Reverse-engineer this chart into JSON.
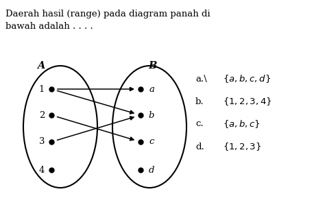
{
  "title_line1": "Daerah hasil (range) pada diagram panah di",
  "title_line2": "bawah adalah . . . .",
  "set_A_label": "A",
  "set_B_label": "B",
  "set_A_elements": [
    "1",
    "2",
    "3",
    "4"
  ],
  "set_B_elements": [
    "a",
    "b",
    "c",
    "d"
  ],
  "arrows": [
    [
      0,
      0
    ],
    [
      0,
      1
    ],
    [
      1,
      2
    ],
    [
      2,
      1
    ]
  ],
  "bg_color": "#ffffff",
  "text_color": "#000000",
  "ellipse_color": "#000000",
  "arrow_color": "#000000",
  "dot_color": "#000000"
}
